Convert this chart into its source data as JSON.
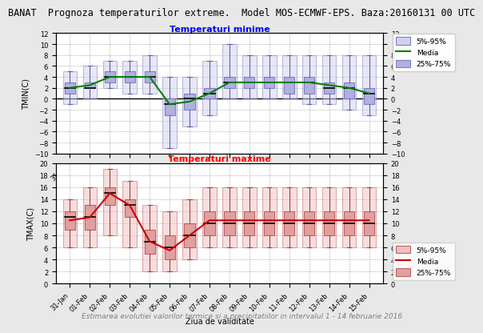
{
  "title": "BANAT  Prognoza temperaturilor extreme.  Model MOS-ECMWF-EPS. Baza:20160131 00 UTC",
  "footer": "Estimarea evolutiei valorilor termice si a precipitatiilor in intervalul 1 - 14 februarie 2016",
  "dates": [
    "31-Jan",
    "01-Feb",
    "02-Feb",
    "03-Feb",
    "04-Feb",
    "05-Feb",
    "06-Feb",
    "07-Feb",
    "08-Feb",
    "09-Feb",
    "10-Feb",
    "11-Feb",
    "12-Feb",
    "13-Feb",
    "14-Feb",
    "15-Feb"
  ],
  "tmin": {
    "title": "Temperaturi minime",
    "ylabel": "TMIN(C)",
    "ylim": [
      -10,
      12
    ],
    "yticks": [
      -10,
      -8,
      -6,
      -4,
      -2,
      0,
      2,
      4,
      6,
      8,
      10,
      12
    ],
    "p5": [
      -1,
      0,
      2,
      1,
      1,
      -9,
      -5,
      -3,
      0,
      0,
      0,
      0,
      -1,
      -1,
      -2,
      -3
    ],
    "p25": [
      1,
      2,
      3,
      3,
      3,
      -3,
      -2,
      0,
      2,
      2,
      2,
      1,
      1,
      1,
      0,
      -1
    ],
    "med": [
      2,
      2,
      4,
      4,
      4,
      -1,
      0,
      1,
      3,
      3,
      3,
      3,
      3,
      2,
      2,
      1
    ],
    "p75": [
      3,
      3,
      5,
      5,
      5,
      0,
      1,
      2,
      4,
      4,
      4,
      4,
      4,
      3,
      3,
      2
    ],
    "p95": [
      5,
      6,
      7,
      7,
      8,
      4,
      4,
      7,
      10,
      8,
      8,
      8,
      8,
      8,
      8,
      8
    ],
    "mean": [
      2.0,
      2.5,
      4.0,
      4.0,
      4.0,
      -1.0,
      -0.5,
      1.0,
      3.0,
      3.0,
      3.0,
      3.0,
      3.0,
      2.5,
      2.0,
      1.0
    ],
    "box_color": "#8080c0",
    "whisker_color": "#6060a0",
    "face_color": "#b0b0e0",
    "mean_color": "green",
    "zero_line": true
  },
  "tmax": {
    "title": "Temperaturi maxime",
    "ylabel": "TMAX(C)",
    "ylim": [
      0,
      20
    ],
    "yticks": [
      0,
      2,
      4,
      6,
      8,
      10,
      12,
      14,
      16,
      18,
      20
    ],
    "p5": [
      6,
      6,
      8,
      6,
      2,
      2,
      4,
      6,
      6,
      6,
      6,
      6,
      6,
      6,
      6,
      6
    ],
    "p25": [
      9,
      9,
      13,
      11,
      5,
      4,
      6,
      8,
      8,
      8,
      8,
      8,
      8,
      8,
      8,
      8
    ],
    "med": [
      11,
      11,
      15,
      13,
      7,
      6,
      8,
      10,
      10,
      10,
      10,
      10,
      10,
      10,
      10,
      10
    ],
    "p75": [
      12,
      13,
      16,
      14,
      9,
      8,
      10,
      12,
      12,
      12,
      12,
      12,
      12,
      12,
      12,
      12
    ],
    "p95": [
      14,
      16,
      19,
      17,
      13,
      12,
      14,
      16,
      16,
      16,
      16,
      16,
      16,
      16,
      16,
      16
    ],
    "mean": [
      10.5,
      11.0,
      15.0,
      13.0,
      7.0,
      5.5,
      8.0,
      10.5,
      10.5,
      10.5,
      10.5,
      10.5,
      10.5,
      10.5,
      10.5,
      10.5
    ],
    "box_color": "#c06060",
    "whisker_color": "#a04040",
    "face_color": "#e0a0a0",
    "mean_color": "#cc0000",
    "zero_line": false
  },
  "bg_color": "#e8e8e8",
  "plot_bg": "#ffffff"
}
